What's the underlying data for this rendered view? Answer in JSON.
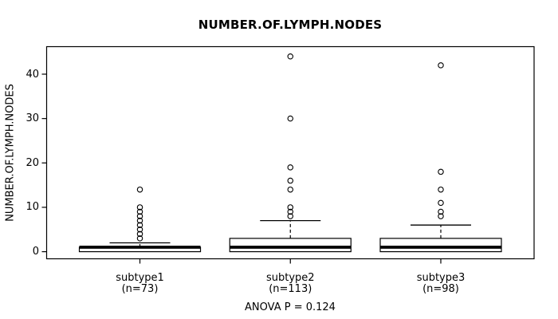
{
  "chart_data": {
    "type": "boxplot",
    "title": "NUMBER.OF.LYMPH.NODES",
    "ylabel": "NUMBER.OF.LYMPH.NODES",
    "xlabel": "",
    "yticks": [
      0,
      10,
      20,
      30,
      40
    ],
    "ylim": [
      -1.6,
      46.2
    ],
    "grid": false,
    "annotation": "ANOVA P = 0.124",
    "colors": {
      "stroke": "#000000",
      "box_fill": "#ffffff",
      "background": "#ffffff"
    },
    "groups": [
      {
        "label": "subtype1",
        "sublabel": "(n=73)",
        "n": 73,
        "whisker_low": 0,
        "q1": 0,
        "median": 1,
        "q3": 1,
        "whisker_high": 2,
        "outliers": [
          3,
          4,
          5,
          6,
          7,
          8,
          9,
          10,
          14
        ]
      },
      {
        "label": "subtype2",
        "sublabel": "(n=113)",
        "n": 113,
        "whisker_low": 0,
        "q1": 0,
        "median": 1,
        "q3": 3,
        "whisker_high": 7,
        "outliers": [
          8,
          9,
          10,
          14,
          16,
          19,
          30,
          44
        ]
      },
      {
        "label": "subtype3",
        "sublabel": "(n=98)",
        "n": 98,
        "whisker_low": 0,
        "q1": 0,
        "median": 1,
        "q3": 3,
        "whisker_high": 6,
        "outliers": [
          8,
          9,
          11,
          14,
          18,
          42
        ]
      }
    ]
  }
}
